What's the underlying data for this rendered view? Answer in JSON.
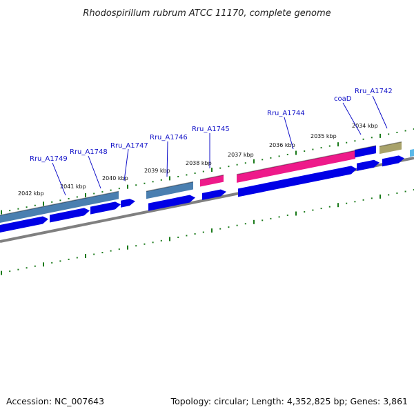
{
  "title": "Rhodospirillum rubrum ATCC 11170, complete genome",
  "footer": {
    "accession": "Accession: NC_007643",
    "summary": "Topology: circular; Length: 4,352,825 bp; Genes: 3,861"
  },
  "colors": {
    "cds_blue": "#0000e6",
    "gene_steel": "#4a7fb0",
    "gene_pink": "#ee1a8a",
    "gene_olive": "#a8a26a",
    "backbone": "#808080",
    "tick_green": "#1a7a1a",
    "label_blue": "#1010c8"
  },
  "scale_labels": [
    "2042 kbp",
    "2041 kbp",
    "2040 kbp",
    "2039 kbp",
    "2038 kbp",
    "2037 kbp",
    "2036 kbp",
    "2035 kbp",
    "2034 kbp"
  ],
  "gene_labels": [
    "Rru_A1749",
    "Rru_A1748",
    "Rru_A1747",
    "Rru_A1746",
    "Rru_A1745",
    "Rru_A1744",
    "coaD",
    "Rru_A1742"
  ]
}
